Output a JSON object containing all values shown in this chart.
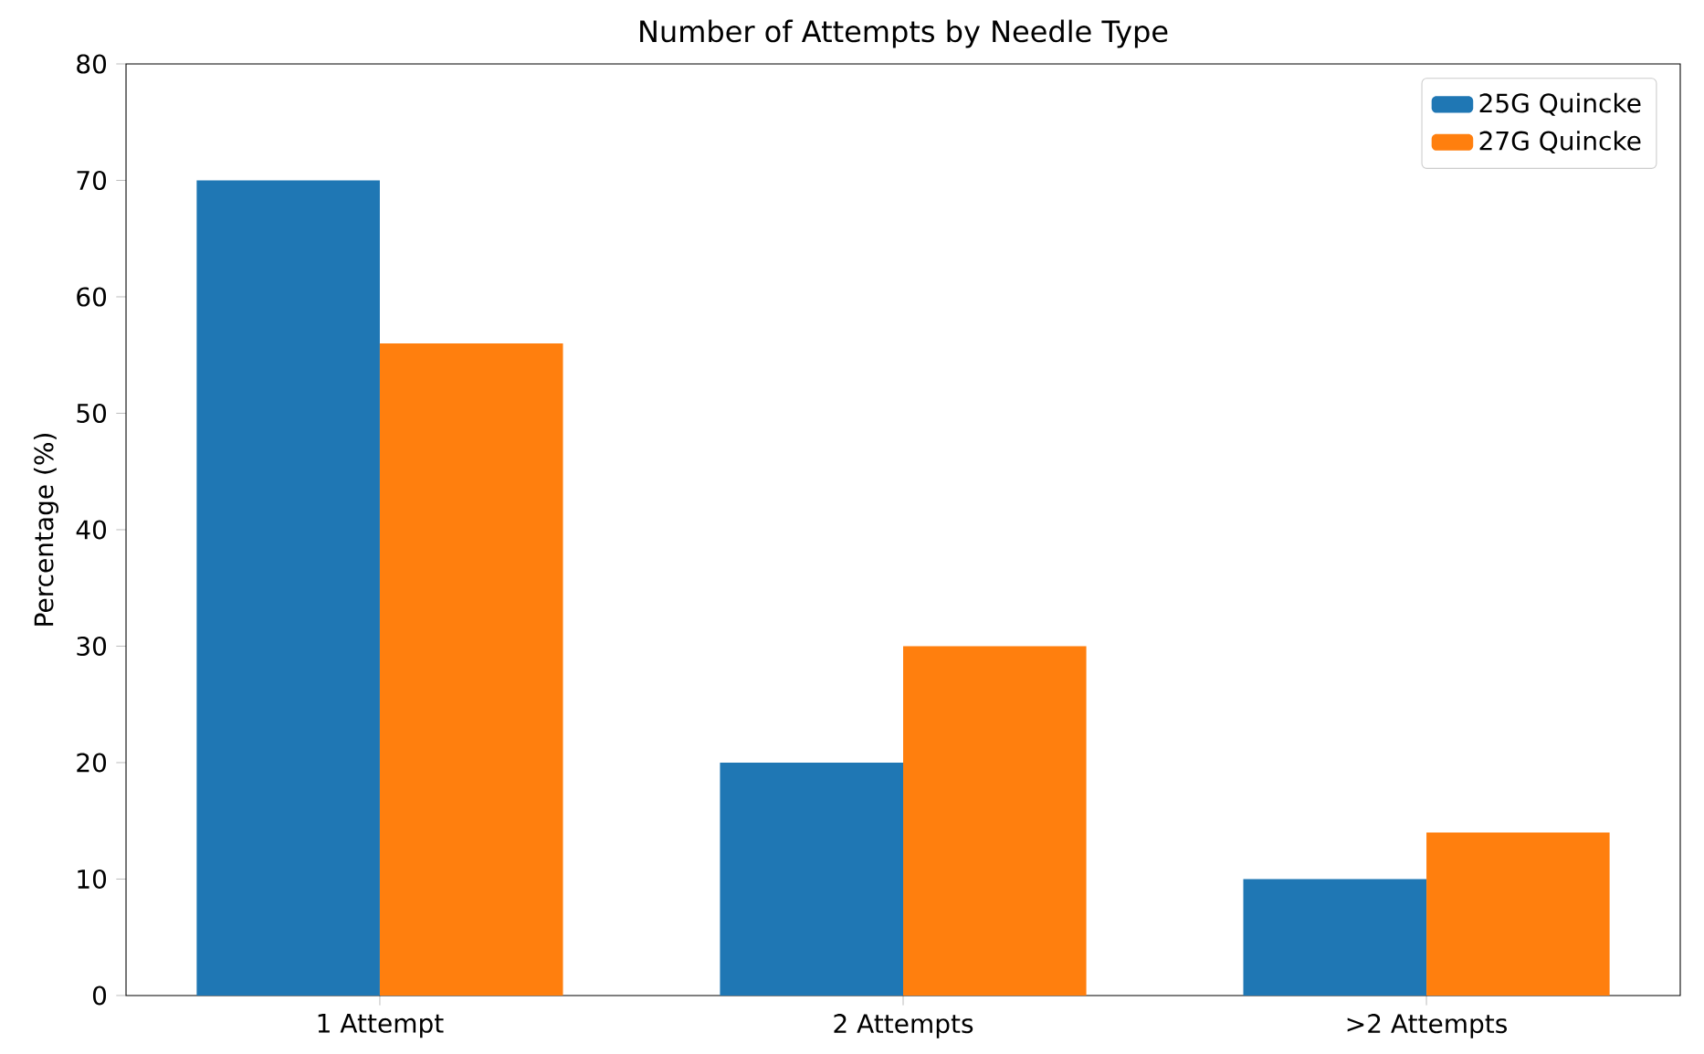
{
  "chart_data": {
    "type": "bar",
    "title": "Number of Attempts by Needle Type",
    "ylabel": "Percentage (%)",
    "categories": [
      "1 Attempt",
      "2 Attempts",
      ">2 Attempts"
    ],
    "series": [
      {
        "name": "25G Quincke",
        "color": "#1f77b4",
        "values": [
          70,
          20,
          10
        ]
      },
      {
        "name": "27G Quincke",
        "color": "#ff7f0e",
        "values": [
          56,
          30,
          14
        ]
      }
    ],
    "ylim": [
      0,
      80
    ],
    "yticks": [
      0,
      10,
      20,
      30,
      40,
      50,
      60,
      70,
      80
    ],
    "legend": "top right"
  }
}
